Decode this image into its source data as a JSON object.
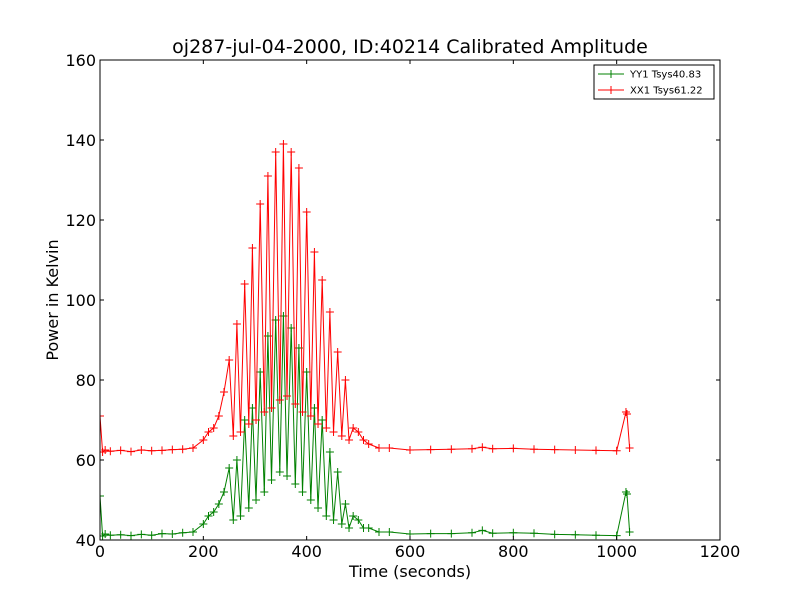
{
  "chart_data": {
    "type": "line",
    "title": "oj287-jul-04-2000, ID:40214 Calibrated Amplitude",
    "xlabel": "Time (seconds)",
    "ylabel": "Power in Kelvin",
    "xlim": [
      0,
      1200
    ],
    "ylim": [
      40,
      160
    ],
    "xticks": [
      "0",
      "200",
      "400",
      "600",
      "800",
      "1000",
      "1200"
    ],
    "yticks": [
      "40",
      "60",
      "80",
      "100",
      "120",
      "140",
      "160"
    ],
    "grid": false,
    "legend_position": "top-right",
    "marker": "+",
    "x": [
      0,
      5,
      10,
      20,
      40,
      60,
      80,
      100,
      120,
      140,
      160,
      180,
      200,
      210,
      220,
      230,
      240,
      250,
      258,
      265,
      272,
      280,
      288,
      295,
      302,
      310,
      318,
      325,
      332,
      340,
      348,
      355,
      362,
      370,
      378,
      385,
      392,
      400,
      408,
      415,
      422,
      430,
      438,
      445,
      452,
      460,
      468,
      475,
      482,
      490,
      500,
      510,
      520,
      540,
      560,
      600,
      640,
      680,
      720,
      740,
      760,
      800,
      840,
      880,
      920,
      960,
      1000,
      1018,
      1020,
      1025
    ],
    "series": [
      {
        "name": "YY1 Tsys40.83",
        "color": "#008000",
        "values": [
          51,
          41,
          41.5,
          41.2,
          41.3,
          41.1,
          41.4,
          41.2,
          41.6,
          41.5,
          41.8,
          42,
          44,
          46,
          47,
          49,
          52,
          58,
          45,
          60,
          46,
          70,
          48,
          73,
          50,
          82,
          52,
          91,
          55,
          95,
          57,
          96,
          56,
          93,
          54,
          88,
          52,
          82,
          50,
          73,
          48,
          70,
          46,
          62,
          45,
          57,
          44,
          49,
          43,
          46,
          45,
          43,
          43,
          42,
          42,
          41.5,
          41.6,
          41.6,
          41.8,
          42.4,
          41.7,
          41.8,
          41.7,
          41.4,
          41.3,
          41.2,
          41.1,
          52,
          51.5,
          42
        ]
      },
      {
        "name": "XX1 Tsys61.22",
        "color": "#ff0000",
        "values": [
          71,
          62,
          62.5,
          62.2,
          62.4,
          62.1,
          62.5,
          62.3,
          62.4,
          62.6,
          62.7,
          63,
          65,
          67,
          68,
          71,
          77,
          85,
          66,
          94,
          67,
          104,
          69,
          113,
          70,
          124,
          72,
          131,
          73,
          137,
          75,
          139,
          76,
          137,
          74,
          133,
          72,
          122,
          71,
          112,
          69,
          105,
          68,
          97,
          67,
          87,
          66,
          80,
          65,
          68,
          67,
          65,
          64,
          63,
          63,
          62.5,
          62.6,
          62.7,
          62.8,
          63.2,
          62.8,
          62.9,
          62.7,
          62.6,
          62.5,
          62.4,
          62.3,
          72,
          71.5,
          63
        ]
      }
    ]
  }
}
